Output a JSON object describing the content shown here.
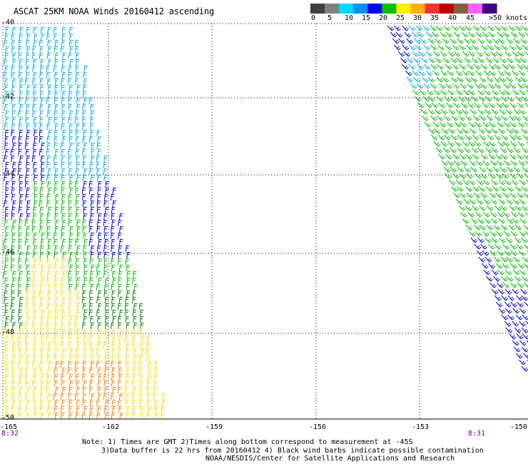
{
  "title": "ASCAT 25KM NOAA Winds 20160412 ascending",
  "legend": {
    "labels": [
      "0",
      "5",
      "10",
      "15",
      "20",
      "25",
      "30",
      "35",
      "40",
      "45",
      ">50 knots"
    ],
    "colors": [
      "#404040",
      "#808080",
      "#00d8ff",
      "#0090f0",
      "#0000ff",
      "#00c000",
      "#fff000",
      "#ffb000",
      "#ff3030",
      "#c00000",
      "#806040",
      "#ff60ff",
      "#400080"
    ]
  },
  "latitudes": [
    "-40",
    "-42",
    "-44",
    "-46",
    "-48",
    "-50"
  ],
  "longitudes": [
    "-165",
    "-162",
    "-159",
    "-156",
    "-153",
    "-150"
  ],
  "time_labels": {
    "left": "8:32",
    "right": "8:31"
  },
  "notes": {
    "line1": "Note: 1) Times are GMT 2)Times along bottom correspond to measurement at -45S",
    "line2": "3)Data buffer is 22 hrs from 20160412 4) Black wind barbs indicate possible contamination",
    "line3": "NOAA/NESDIS/Center for Satellite Applications and Research"
  },
  "barb_colors": {
    "cyan": "#00b0f0",
    "blue": "#0000e0",
    "green": "#00c000",
    "darkgreen": "#008000",
    "yellow": "#ffe000",
    "orange": "#ff8000"
  }
}
